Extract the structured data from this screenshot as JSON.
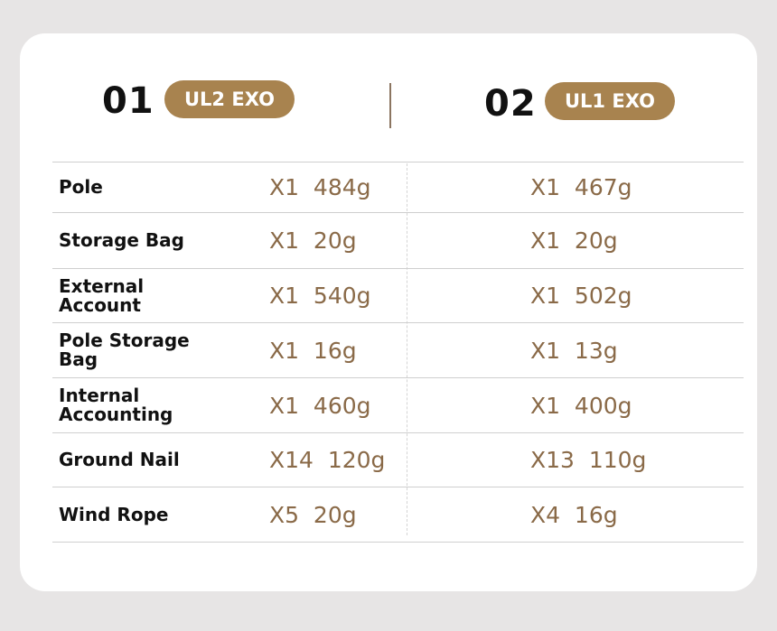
{
  "colors": {
    "accent": "#a8834f",
    "value_text": "#8a6a48"
  },
  "header": {
    "products": [
      {
        "number": "01",
        "name": "UL2 EXO"
      },
      {
        "number": "02",
        "name": "UL1 EXO"
      }
    ]
  },
  "rows": [
    {
      "label": "Pole",
      "p1": "X1  484g",
      "p2": "X1  467g"
    },
    {
      "label": "Storage Bag",
      "p1": "X1  20g",
      "p2": "X1  20g"
    },
    {
      "label": "External Account",
      "p1": "X1  540g",
      "p2": "X1  502g"
    },
    {
      "label": "Pole Storage Bag",
      "p1": "X1  16g",
      "p2": "X1  13g"
    },
    {
      "label": "Internal Accounting",
      "p1": "X1  460g",
      "p2": "X1  400g"
    },
    {
      "label": "Ground Nail",
      "p1": "X14  120g",
      "p2": "X13  110g"
    },
    {
      "label": "Wind Rope",
      "p1": "X5  20g",
      "p2": "X4  16g"
    }
  ]
}
